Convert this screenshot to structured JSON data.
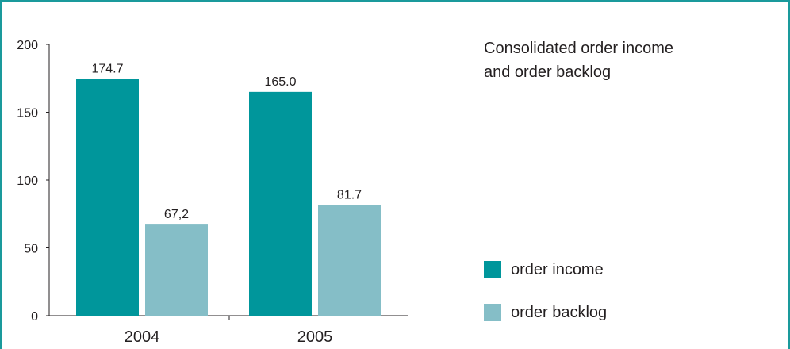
{
  "chart_data": {
    "type": "bar",
    "title": "Consolidated order income\nand order backlog",
    "categories": [
      "2004",
      "2005"
    ],
    "series": [
      {
        "name": "order income",
        "values": [
          174.7,
          165.0
        ],
        "labels": [
          "174.7",
          "165.0"
        ],
        "color": "#00969b"
      },
      {
        "name": "order backlog",
        "values": [
          67.2,
          81.7
        ],
        "labels": [
          "67,2",
          "81.7"
        ],
        "color": "#85bec7"
      }
    ],
    "yticks": [
      "0",
      "50",
      "100",
      "150",
      "200"
    ],
    "ylim": [
      0,
      200
    ],
    "xlabel": "",
    "ylabel": "",
    "grid": false,
    "legend_position": "right"
  },
  "colors": {
    "frame": "#1a9a9c"
  }
}
